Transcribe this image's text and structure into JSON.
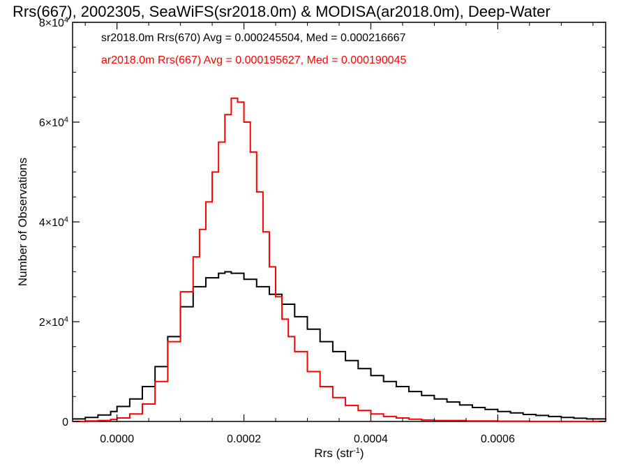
{
  "chart_data": {
    "type": "line",
    "title": "Rrs(667), 2002305, SeaWiFS(sr2018.0m) & MODISA(ar2018.0m), Deep-Water",
    "xlabel_base": "Rrs (str",
    "xlabel_sup": "-1",
    "xlabel_close": ")",
    "ylabel": "Number of Observations",
    "xlim": [
      -7e-05,
      0.00077
    ],
    "ylim": [
      0,
      80000
    ],
    "x_ticks": [
      {
        "value": 0.0,
        "label": "0.0000"
      },
      {
        "value": 0.0002,
        "label": "0.0002"
      },
      {
        "value": 0.0004,
        "label": "0.0004"
      },
      {
        "value": 0.0006,
        "label": "0.0006"
      }
    ],
    "y_ticks": [
      {
        "value": 0,
        "base": "0",
        "exp": ""
      },
      {
        "value": 20000,
        "base": "2×10",
        "exp": "4"
      },
      {
        "value": 40000,
        "base": "4×10",
        "exp": "4"
      },
      {
        "value": 60000,
        "base": "6×10",
        "exp": "4"
      },
      {
        "value": 80000,
        "base": "8×10",
        "exp": "4"
      }
    ],
    "annotations": [
      {
        "text": "sr2018.0m Rrs(670) Avg = 0.000245504, Med = 0.000216667",
        "color": "#000000"
      },
      {
        "text": "ar2018.0m Rrs(667) Avg = 0.000195627, Med = 0.000190045",
        "color": "#ff0000"
      }
    ],
    "series": [
      {
        "color": "#000000",
        "style": "histogram-step",
        "x": [
          -7e-05,
          -5e-05,
          -3e-05,
          -1e-05,
          0.0,
          2e-05,
          4e-05,
          6e-05,
          8e-05,
          0.0001,
          0.00012,
          0.00014,
          0.00016,
          0.00017,
          0.00018,
          0.0002,
          0.00022,
          0.00024,
          0.00026,
          0.00028,
          0.0003,
          0.00032,
          0.00034,
          0.00036,
          0.00038,
          0.0004,
          0.00042,
          0.00044,
          0.00046,
          0.00048,
          0.0005,
          0.00052,
          0.00054,
          0.00056,
          0.00058,
          0.0006,
          0.00062,
          0.00064,
          0.00066,
          0.00068,
          0.0007,
          0.00072,
          0.00074,
          0.00077
        ],
        "y": [
          500,
          800,
          1300,
          2000,
          3000,
          4500,
          7000,
          11000,
          17000,
          23000,
          27000,
          28800,
          29700,
          30000,
          29700,
          28500,
          27000,
          25500,
          23500,
          21000,
          18500,
          16000,
          14000,
          12200,
          10600,
          9200,
          8000,
          7000,
          6000,
          5200,
          4500,
          3900,
          3300,
          2800,
          2400,
          2000,
          1700,
          1400,
          1200,
          1000,
          800,
          650,
          500,
          400
        ]
      },
      {
        "color": "#ff0000",
        "style": "histogram-step",
        "x": [
          -7e-05,
          -5e-05,
          -3e-05,
          -1e-05,
          0.0,
          2e-05,
          4e-05,
          6e-05,
          8e-05,
          0.0001,
          0.00012,
          0.00013,
          0.00014,
          0.00015,
          0.00016,
          0.00017,
          0.00018,
          0.00019,
          0.0002,
          0.00021,
          0.00022,
          0.00023,
          0.00024,
          0.00025,
          0.00026,
          0.00027,
          0.00028,
          0.0003,
          0.00032,
          0.00034,
          0.00036,
          0.00038,
          0.0004,
          0.00042,
          0.00044,
          0.00046,
          0.00048,
          0.0005,
          0.00055,
          0.0006,
          0.00065,
          0.0007,
          0.00077
        ],
        "y": [
          0,
          100,
          200,
          400,
          700,
          1500,
          3500,
          8000,
          16000,
          26000,
          33000,
          38500,
          44000,
          50000,
          56000,
          61500,
          64800,
          64000,
          60000,
          54000,
          46000,
          38000,
          31000,
          25000,
          20500,
          17000,
          14000,
          10000,
          7000,
          4800,
          3200,
          2200,
          1500,
          1000,
          700,
          450,
          300,
          200,
          100,
          50,
          20,
          10,
          0
        ]
      }
    ]
  }
}
